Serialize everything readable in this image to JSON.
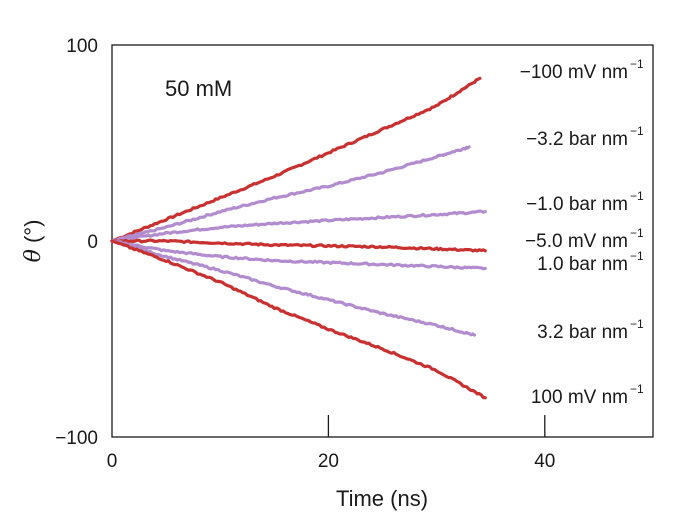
{
  "chart_data": {
    "type": "line",
    "annotation": "50 mM",
    "xlabel": "Time (ns)",
    "ylabel_symbol": "θ",
    "ylabel_unit": " (°)",
    "xlim": [
      0,
      50
    ],
    "ylim": [
      -100,
      100
    ],
    "x_ticks": [
      {
        "value": 0,
        "label": "0"
      },
      {
        "value": 20,
        "label": "20"
      },
      {
        "value": 40,
        "label": "40"
      }
    ],
    "y_ticks": [
      {
        "value": 100,
        "label": "100"
      },
      {
        "value": 0,
        "label": "0"
      },
      {
        "value": -100,
        "label": "−100"
      }
    ],
    "grid": false,
    "legend": "inline labels at line ends",
    "series": [
      {
        "name": "−100 mV nm⁻¹",
        "label_main": "−100 mV nm",
        "label_sup": "−1",
        "color": "#c8312f",
        "x": [
          0,
          5,
          10,
          15,
          20,
          25,
          30,
          34
        ],
        "values": [
          0,
          11,
          22,
          33,
          45,
          57,
          69,
          83
        ]
      },
      {
        "name": "−3.2 bar nm⁻¹",
        "label_main": "−3.2 bar nm",
        "label_sup": "−1",
        "color": "#b18ccf",
        "x": [
          0,
          5,
          10,
          15,
          20,
          25,
          30,
          33
        ],
        "values": [
          0,
          7,
          15,
          22,
          28,
          35,
          43,
          48
        ]
      },
      {
        "name": "−1.0 bar nm⁻¹",
        "label_main": "−1.0 bar nm",
        "label_sup": "−1",
        "color": "#b18ccf",
        "x": [
          0,
          5,
          10,
          15,
          20,
          25,
          30,
          34.5
        ],
        "values": [
          0,
          4,
          7,
          9,
          10.5,
          12,
          13.5,
          15
        ]
      },
      {
        "name": "−5.0 mV nm⁻¹",
        "label_main": "−5.0 mV nm",
        "label_sup": "−1",
        "color": "#c8312f",
        "x": [
          0,
          5,
          10,
          15,
          20,
          25,
          30,
          34.5
        ],
        "values": [
          0,
          0,
          -1,
          -2,
          -2.5,
          -3,
          -4,
          -5
        ]
      },
      {
        "name": "1.0 bar nm⁻¹",
        "label_main": "1.0 bar nm",
        "label_sup": "−1",
        "color": "#b18ccf",
        "x": [
          0,
          5,
          10,
          15,
          20,
          25,
          30,
          34.5
        ],
        "values": [
          0,
          -5,
          -8,
          -10,
          -11,
          -12,
          -13,
          -14
        ]
      },
      {
        "name": "3.2 bar nm⁻¹",
        "label_main": "3.2 bar nm",
        "label_sup": "−1",
        "color": "#b18ccf",
        "x": [
          0,
          5,
          10,
          15,
          20,
          25,
          30,
          33.5
        ],
        "values": [
          0,
          -8,
          -15,
          -23,
          -30,
          -37,
          -43,
          -48
        ]
      },
      {
        "name": "100 mV nm⁻¹",
        "label_main": "100 mV nm",
        "label_sup": "−1",
        "color": "#c8312f",
        "x": [
          0,
          5,
          10,
          15,
          20,
          25,
          30,
          34.5
        ],
        "values": [
          0,
          -10,
          -21,
          -34,
          -45,
          -55,
          -66,
          -80
        ]
      }
    ]
  }
}
